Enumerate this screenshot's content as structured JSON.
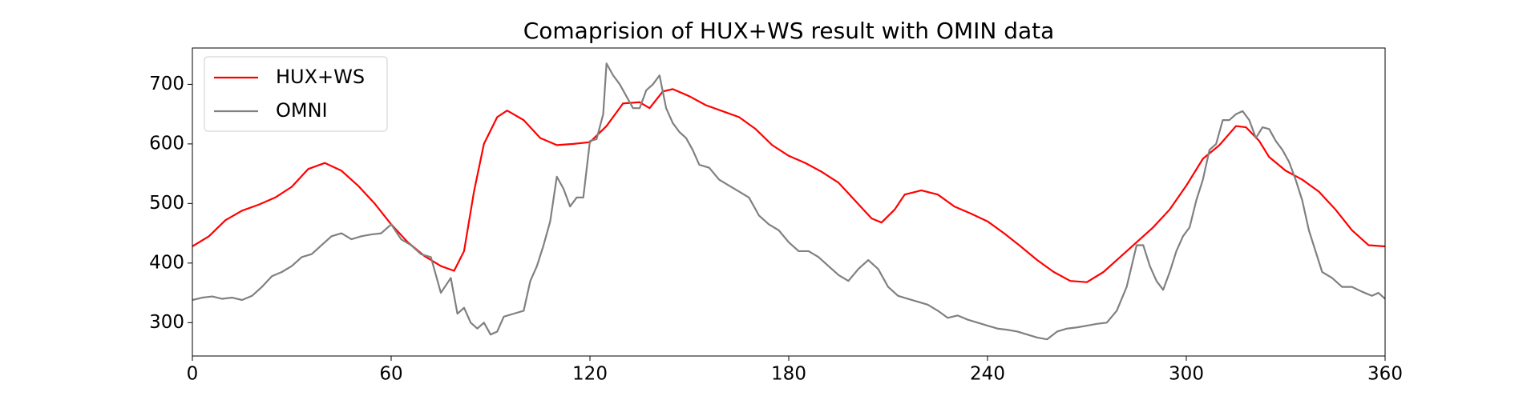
{
  "chart_data": {
    "type": "line",
    "title": "Comaprision of HUX+WS result with OMIN data",
    "xlim": [
      0,
      360
    ],
    "xticks": [
      0,
      60,
      120,
      180,
      240,
      300,
      360
    ],
    "ylim": [
      244,
      761
    ],
    "yticks": [
      300,
      400,
      500,
      600,
      700
    ],
    "legend": "upper left",
    "series": [
      {
        "name": "HUX+WS",
        "color": "#ff0000",
        "x": [
          0,
          5,
          10,
          15,
          20,
          25,
          30,
          35,
          40,
          45,
          50,
          55,
          60,
          65,
          70,
          75,
          79,
          82,
          85,
          88,
          92,
          95,
          100,
          105,
          110,
          115,
          120,
          125,
          130,
          135,
          138,
          142,
          145,
          150,
          155,
          160,
          165,
          170,
          175,
          180,
          185,
          190,
          195,
          200,
          205,
          208,
          212,
          215,
          220,
          225,
          230,
          235,
          240,
          245,
          250,
          255,
          260,
          265,
          270,
          275,
          280,
          285,
          290,
          295,
          300,
          305,
          310,
          315,
          318,
          322,
          325,
          330,
          335,
          340,
          345,
          350,
          355,
          360
        ],
        "values": [
          428,
          445,
          472,
          488,
          498,
          510,
          528,
          558,
          568,
          555,
          530,
          500,
          465,
          435,
          412,
          395,
          387,
          420,
          520,
          600,
          645,
          656,
          640,
          610,
          598,
          600,
          603,
          630,
          668,
          670,
          660,
          688,
          692,
          680,
          665,
          655,
          645,
          625,
          598,
          580,
          568,
          553,
          535,
          505,
          475,
          468,
          490,
          515,
          522,
          515,
          495,
          483,
          470,
          450,
          428,
          405,
          385,
          370,
          368,
          385,
          410,
          435,
          460,
          490,
          530,
          575,
          598,
          630,
          628,
          605,
          578,
          555,
          540,
          520,
          490,
          455,
          430,
          428
        ]
      },
      {
        "name": "OMNI",
        "color": "#808080",
        "x": [
          0,
          3,
          6,
          9,
          12,
          15,
          18,
          21,
          24,
          27,
          30,
          33,
          36,
          39,
          42,
          45,
          48,
          51,
          54,
          57,
          60,
          63,
          66,
          69,
          72,
          75,
          78,
          80,
          82,
          84,
          86,
          88,
          90,
          92,
          94,
          97,
          100,
          102,
          104,
          106,
          108,
          110,
          112,
          114,
          116,
          118,
          120,
          122,
          124,
          125,
          127,
          129,
          131,
          133,
          135,
          137,
          139,
          141,
          143,
          145,
          147,
          149,
          151,
          153,
          156,
          159,
          162,
          165,
          168,
          171,
          174,
          177,
          180,
          183,
          186,
          189,
          192,
          195,
          198,
          201,
          204,
          207,
          210,
          213,
          216,
          219,
          222,
          225,
          228,
          231,
          234,
          237,
          240,
          243,
          246,
          249,
          252,
          255,
          258,
          261,
          264,
          267,
          270,
          273,
          276,
          279,
          282,
          285,
          287,
          289,
          291,
          293,
          295,
          297,
          299,
          301,
          303,
          305,
          307,
          309,
          311,
          313,
          315,
          317,
          319,
          321,
          323,
          325,
          327,
          329,
          331,
          333,
          335,
          337,
          339,
          341,
          344,
          347,
          350,
          353,
          356,
          358,
          360
        ],
        "values": [
          338,
          342,
          344,
          340,
          342,
          338,
          345,
          360,
          378,
          385,
          395,
          410,
          415,
          430,
          445,
          450,
          440,
          445,
          448,
          450,
          465,
          440,
          430,
          415,
          410,
          350,
          375,
          315,
          325,
          300,
          290,
          300,
          280,
          285,
          310,
          315,
          320,
          370,
          395,
          430,
          470,
          545,
          525,
          495,
          510,
          510,
          605,
          608,
          650,
          735,
          715,
          700,
          680,
          660,
          660,
          690,
          700,
          715,
          660,
          635,
          620,
          610,
          590,
          565,
          560,
          540,
          530,
          520,
          510,
          480,
          465,
          455,
          435,
          420,
          420,
          410,
          395,
          380,
          370,
          390,
          405,
          390,
          360,
          345,
          340,
          335,
          330,
          320,
          308,
          312,
          305,
          300,
          295,
          290,
          288,
          285,
          280,
          275,
          272,
          285,
          290,
          292,
          295,
          298,
          300,
          320,
          360,
          430,
          430,
          395,
          370,
          355,
          385,
          420,
          445,
          460,
          505,
          540,
          590,
          600,
          640,
          640,
          650,
          655,
          640,
          610,
          628,
          625,
          605,
          590,
          570,
          540,
          505,
          455,
          420,
          385,
          375,
          360,
          360,
          352,
          345,
          350,
          340
        ]
      }
    ]
  }
}
